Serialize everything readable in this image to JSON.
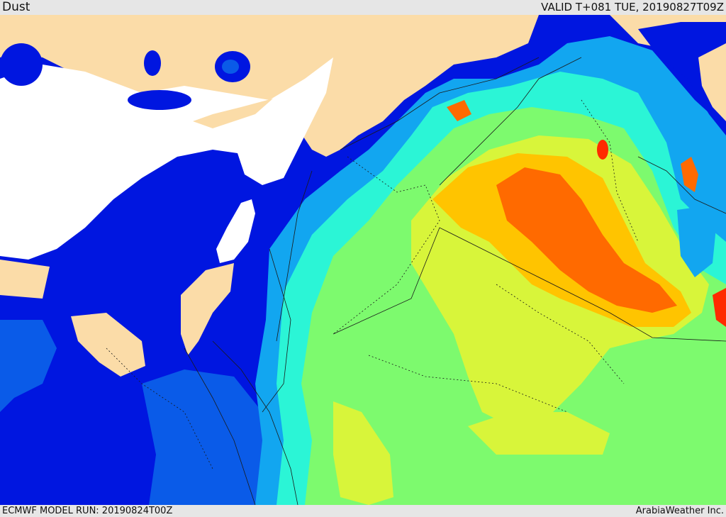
{
  "header": {
    "title": "Dust",
    "valid_time": "VALID T+081 TUE, 20190827T09Z"
  },
  "footer": {
    "model_run": "ECMWF MODEL RUN: 20190824T00Z",
    "brand": "ArabiaWeather Inc."
  },
  "colors": {
    "land": "#fbdca8",
    "sea_no_dust": "#ffffff",
    "dust_very_low": "#0016e0",
    "dust_low": "#0a5be8",
    "dust_moderate_low": "#12a6f0",
    "dust_moderate": "#2bf5d6",
    "dust_medium": "#7dfa6e",
    "dust_elevated": "#d8f53a",
    "dust_high": "#ffc400",
    "dust_very_high": "#ff6a00",
    "dust_extreme": "#ff2a00",
    "borders": "#1a1a1a"
  }
}
